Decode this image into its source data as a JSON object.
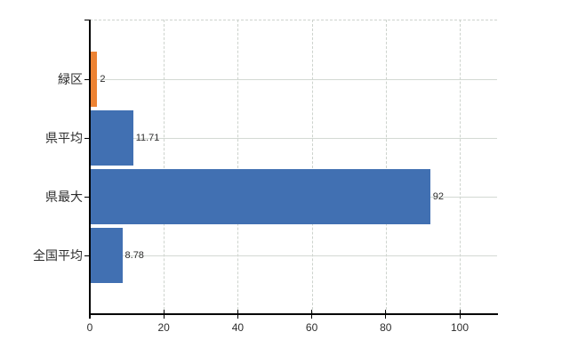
{
  "chart_data": {
    "type": "bar",
    "orientation": "horizontal",
    "title": "",
    "xlabel": "",
    "ylabel": "",
    "categories": [
      "緑区",
      "県平均",
      "県最大",
      "全国平均"
    ],
    "values": [
      2,
      11.71,
      92,
      8.78
    ],
    "value_labels": [
      "2",
      "11.71",
      "92",
      "8.78"
    ],
    "bar_colors": [
      "#ED8333",
      "#4170B2",
      "#4170B2",
      "#4170B2"
    ],
    "x_ticks": [
      0,
      20,
      40,
      60,
      80,
      100
    ],
    "x_tick_labels": [
      "0",
      "20",
      "40",
      "60",
      "80",
      "100"
    ],
    "xlim": [
      0,
      110.3
    ],
    "grid": true,
    "legend": false,
    "colors": {
      "axis": "#000000",
      "grid_horizontal": "#d3d9d3",
      "grid_vertical": "#cdd3cd",
      "text": "#2d2d2d",
      "background": "#ffffff"
    }
  }
}
